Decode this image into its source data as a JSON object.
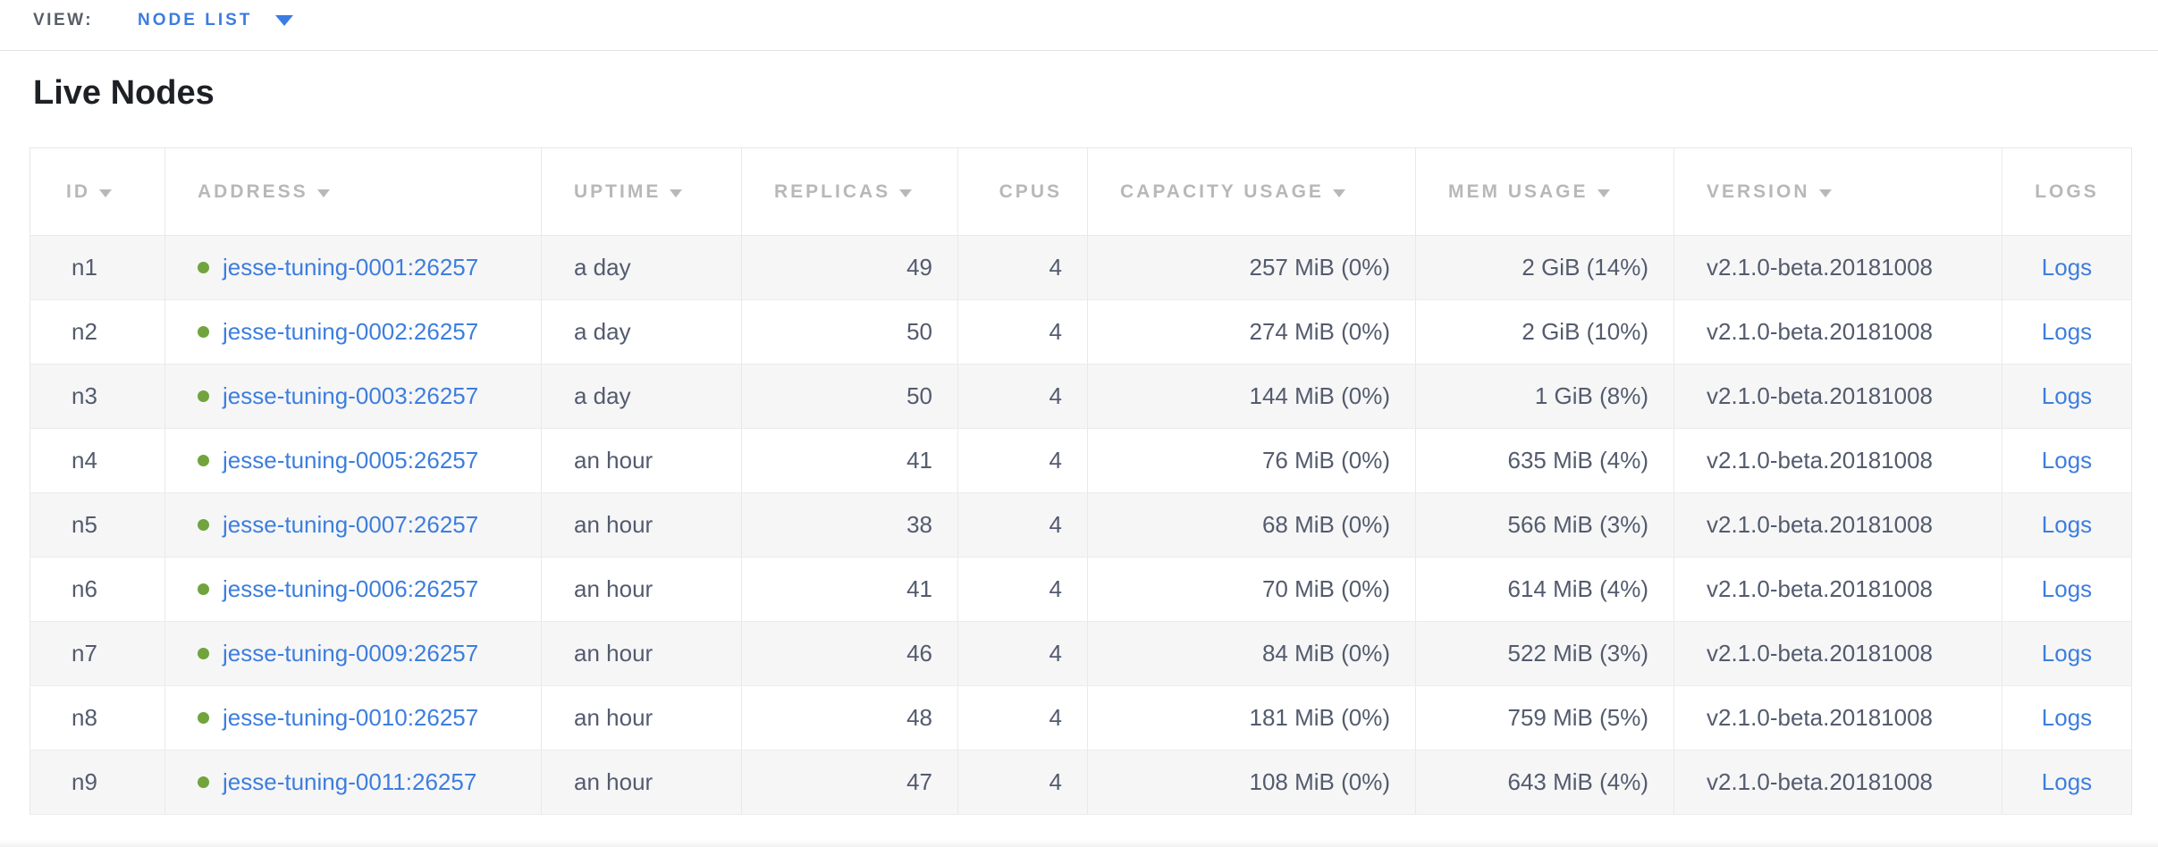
{
  "view_bar": {
    "label": "VIEW:",
    "selected": "NODE LIST"
  },
  "page": {
    "title": "Live Nodes"
  },
  "table": {
    "columns": [
      {
        "key": "id",
        "label": "ID",
        "sortable": true
      },
      {
        "key": "address",
        "label": "ADDRESS",
        "sortable": true
      },
      {
        "key": "uptime",
        "label": "UPTIME",
        "sortable": true
      },
      {
        "key": "replicas",
        "label": "REPLICAS",
        "sortable": true
      },
      {
        "key": "cpus",
        "label": "CPUS",
        "sortable": false
      },
      {
        "key": "capacity",
        "label": "CAPACITY USAGE",
        "sortable": true
      },
      {
        "key": "mem",
        "label": "MEM USAGE",
        "sortable": true
      },
      {
        "key": "version",
        "label": "VERSION",
        "sortable": true
      },
      {
        "key": "logs",
        "label": "LOGS",
        "sortable": false
      }
    ],
    "rows": [
      {
        "id": "n1",
        "address": "jesse-tuning-0001:26257",
        "uptime": "a day",
        "replicas": "49",
        "cpus": "4",
        "capacity": "257 MiB (0%)",
        "mem": "2 GiB (14%)",
        "version": "v2.1.0-beta.20181008",
        "logs": "Logs"
      },
      {
        "id": "n2",
        "address": "jesse-tuning-0002:26257",
        "uptime": "a day",
        "replicas": "50",
        "cpus": "4",
        "capacity": "274 MiB (0%)",
        "mem": "2 GiB (10%)",
        "version": "v2.1.0-beta.20181008",
        "logs": "Logs"
      },
      {
        "id": "n3",
        "address": "jesse-tuning-0003:26257",
        "uptime": "a day",
        "replicas": "50",
        "cpus": "4",
        "capacity": "144 MiB (0%)",
        "mem": "1 GiB (8%)",
        "version": "v2.1.0-beta.20181008",
        "logs": "Logs"
      },
      {
        "id": "n4",
        "address": "jesse-tuning-0005:26257",
        "uptime": "an hour",
        "replicas": "41",
        "cpus": "4",
        "capacity": "76 MiB (0%)",
        "mem": "635 MiB (4%)",
        "version": "v2.1.0-beta.20181008",
        "logs": "Logs"
      },
      {
        "id": "n5",
        "address": "jesse-tuning-0007:26257",
        "uptime": "an hour",
        "replicas": "38",
        "cpus": "4",
        "capacity": "68 MiB (0%)",
        "mem": "566 MiB (3%)",
        "version": "v2.1.0-beta.20181008",
        "logs": "Logs"
      },
      {
        "id": "n6",
        "address": "jesse-tuning-0006:26257",
        "uptime": "an hour",
        "replicas": "41",
        "cpus": "4",
        "capacity": "70 MiB (0%)",
        "mem": "614 MiB (4%)",
        "version": "v2.1.0-beta.20181008",
        "logs": "Logs"
      },
      {
        "id": "n7",
        "address": "jesse-tuning-0009:26257",
        "uptime": "an hour",
        "replicas": "46",
        "cpus": "4",
        "capacity": "84 MiB (0%)",
        "mem": "522 MiB (3%)",
        "version": "v2.1.0-beta.20181008",
        "logs": "Logs"
      },
      {
        "id": "n8",
        "address": "jesse-tuning-0010:26257",
        "uptime": "an hour",
        "replicas": "48",
        "cpus": "4",
        "capacity": "181 MiB (0%)",
        "mem": "759 MiB (5%)",
        "version": "v2.1.0-beta.20181008",
        "logs": "Logs"
      },
      {
        "id": "n9",
        "address": "jesse-tuning-0011:26257",
        "uptime": "an hour",
        "replicas": "47",
        "cpus": "4",
        "capacity": "108 MiB (0%)",
        "mem": "643 MiB (4%)",
        "version": "v2.1.0-beta.20181008",
        "logs": "Logs"
      }
    ]
  },
  "icons": {
    "dropdown_icon": "▼",
    "sort_desc_icon": "▼",
    "live_node_icon": "●"
  },
  "colors": {
    "accent_blue": "#3b7ce0",
    "link_blue": "#3d7edd",
    "live_green": "#71a43c",
    "cell_text": "#535b6d",
    "header_text": "#b6b8ba"
  }
}
